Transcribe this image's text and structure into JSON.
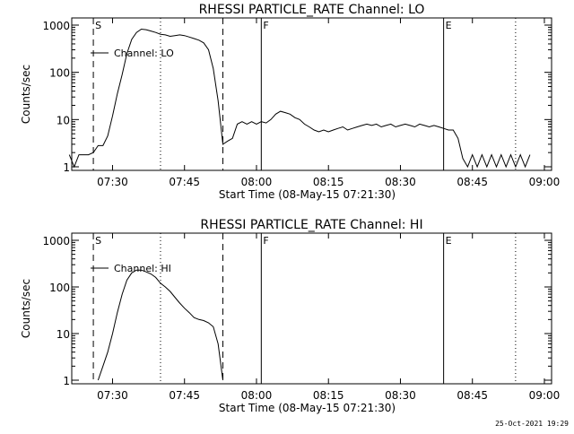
{
  "footer": {
    "timestamp": "25-Oct-2021 19:29"
  },
  "chart_data": [
    {
      "type": "line",
      "title": "RHESSI PARTICLE_RATE Channel: LO",
      "xlabel": "Start Time (08-May-15 07:21:30)",
      "ylabel": "Counts/sec",
      "yscale": "log",
      "ylim": [
        1,
        1000
      ],
      "xlim_minutes": [
        0,
        100
      ],
      "x_ticks": [
        "07:30",
        "07:45",
        "08:00",
        "08:15",
        "08:30",
        "08:45",
        "09:00"
      ],
      "y_ticks": [
        "1",
        "10",
        "100",
        "1000"
      ],
      "legend": {
        "label": "Channel: LO",
        "placement": "top-left"
      },
      "markers": [
        {
          "label": "S",
          "x": "07:26",
          "style": "dashed"
        },
        {
          "label": "",
          "x": "07:40",
          "style": "dotted"
        },
        {
          "label": "",
          "x": "07:53",
          "style": "dashed"
        },
        {
          "label": "F",
          "x": "08:01",
          "style": "solid"
        },
        {
          "label": "E",
          "x": "08:39",
          "style": "solid"
        },
        {
          "label": "",
          "x": "08:54",
          "style": "dotted"
        }
      ],
      "grid": false,
      "series": [
        {
          "name": "Channel: LO",
          "x": [
            "07:21",
            "07:22",
            "07:23",
            "07:24",
            "07:25",
            "07:26",
            "07:27",
            "07:28",
            "07:29",
            "07:30",
            "07:31",
            "07:32",
            "07:33",
            "07:34",
            "07:35",
            "07:36",
            "07:37",
            "07:38",
            "07:39",
            "07:40",
            "07:41",
            "07:42",
            "07:43",
            "07:44",
            "07:45",
            "07:46",
            "07:47",
            "07:48",
            "07:49",
            "07:50",
            "07:51",
            "07:52",
            "07:53",
            "07:54",
            "07:55",
            "07:56",
            "07:57",
            "07:58",
            "07:59",
            "08:00",
            "08:01",
            "08:02",
            "08:03",
            "08:04",
            "08:05",
            "08:06",
            "08:07",
            "08:08",
            "08:09",
            "08:10",
            "08:11",
            "08:12",
            "08:13",
            "08:14",
            "08:15",
            "08:16",
            "08:17",
            "08:18",
            "08:19",
            "08:20",
            "08:21",
            "08:22",
            "08:23",
            "08:24",
            "08:25",
            "08:26",
            "08:27",
            "08:28",
            "08:29",
            "08:30",
            "08:31",
            "08:32",
            "08:33",
            "08:34",
            "08:35",
            "08:36",
            "08:37",
            "08:38",
            "08:39",
            "08:40",
            "08:41",
            "08:42",
            "08:43",
            "08:44",
            "08:45",
            "08:46",
            "08:47",
            "08:48",
            "08:49",
            "08:50",
            "08:51",
            "08:52",
            "08:53",
            "08:54",
            "08:55",
            "08:56",
            "08:57"
          ],
          "values": [
            1.8,
            1,
            1.8,
            1.8,
            1.8,
            2,
            2.8,
            2.8,
            4.5,
            12,
            35,
            90,
            250,
            500,
            700,
            820,
            800,
            750,
            700,
            640,
            620,
            580,
            600,
            620,
            600,
            560,
            520,
            480,
            420,
            300,
            120,
            25,
            3,
            3.5,
            4,
            8,
            9,
            8,
            9,
            8,
            9,
            8.5,
            10,
            13,
            15,
            14,
            13,
            11,
            10,
            8,
            7,
            6,
            5.5,
            6,
            5.5,
            6,
            6.5,
            7,
            6,
            6.5,
            7,
            7.5,
            8,
            7.5,
            8,
            7,
            7.5,
            8,
            7,
            7.5,
            8,
            7.5,
            7,
            8,
            7.5,
            7,
            7.5,
            7,
            6.5,
            6,
            6,
            4,
            1.5,
            1,
            1.8,
            1,
            1.8,
            1,
            1.8,
            1,
            1.8,
            1,
            1.8,
            1,
            1.8,
            1,
            1.8
          ]
        }
      ]
    },
    {
      "type": "line",
      "title": "RHESSI PARTICLE_RATE Channel: HI",
      "xlabel": "Start Time (08-May-15 07:21:30)",
      "ylabel": "Counts/sec",
      "yscale": "log",
      "ylim": [
        1,
        1000
      ],
      "xlim_minutes": [
        0,
        100
      ],
      "x_ticks": [
        "07:30",
        "07:45",
        "08:00",
        "08:15",
        "08:30",
        "08:45",
        "09:00"
      ],
      "y_ticks": [
        "1",
        "10",
        "100",
        "1000"
      ],
      "legend": {
        "label": "Channel: HI",
        "placement": "top-left"
      },
      "markers": [
        {
          "label": "S",
          "x": "07:26",
          "style": "dashed"
        },
        {
          "label": "",
          "x": "07:40",
          "style": "dotted"
        },
        {
          "label": "",
          "x": "07:53",
          "style": "dashed"
        },
        {
          "label": "F",
          "x": "08:01",
          "style": "solid"
        },
        {
          "label": "E",
          "x": "08:39",
          "style": "solid"
        },
        {
          "label": "",
          "x": "08:54",
          "style": "dotted"
        }
      ],
      "grid": false,
      "series": [
        {
          "name": "Channel: HI",
          "x": [
            "07:27",
            "07:28",
            "07:29",
            "07:30",
            "07:31",
            "07:32",
            "07:33",
            "07:34",
            "07:35",
            "07:36",
            "07:37",
            "07:38",
            "07:39",
            "07:40",
            "07:41",
            "07:42",
            "07:43",
            "07:44",
            "07:45",
            "07:46",
            "07:47",
            "07:48",
            "07:49",
            "07:50",
            "07:51",
            "07:52",
            "07:53"
          ],
          "values": [
            1,
            2,
            4,
            10,
            28,
            70,
            140,
            200,
            230,
            230,
            210,
            190,
            160,
            120,
            100,
            80,
            60,
            45,
            35,
            28,
            22,
            20,
            19,
            17,
            14,
            6,
            1
          ]
        }
      ]
    }
  ]
}
